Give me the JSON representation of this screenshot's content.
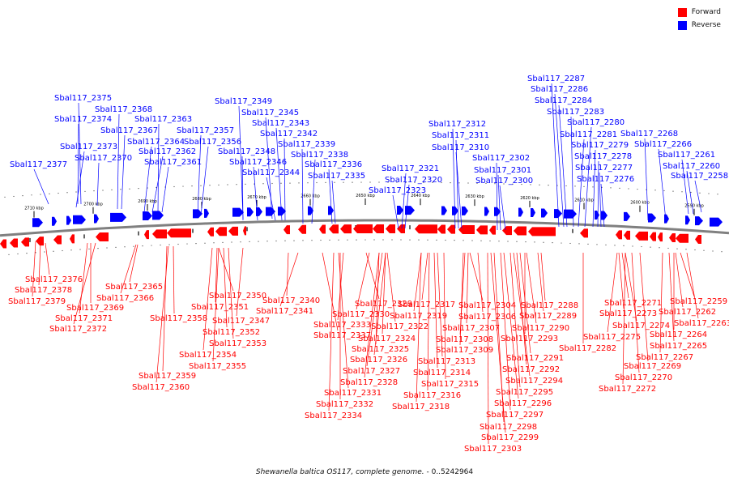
{
  "caption": {
    "organism": "Shewanella baltica OS117, complete genome.",
    "range": " - 0..5242964"
  },
  "legend": [
    {
      "label": "Forward",
      "color": "#ff0000"
    },
    {
      "label": "Reverse",
      "color": "#0000ff"
    }
  ],
  "colors": {
    "forward": "#ff0000",
    "reverse": "#0000ff",
    "backbone": "#808080"
  },
  "scale_labels": [
    "2710 kbp",
    "2700 kbp",
    "2690 kbp",
    "2680 kbp",
    "2670 kbp",
    "2660 kbp",
    "2650 kbp",
    "2640 kbp",
    "2630 kbp",
    "2620 kbp",
    "2610 kbp",
    "2600 kbp",
    "2590 kbp"
  ],
  "reverse_genes": [
    "Sbal117_2377",
    "Sbal117_2375",
    "Sbal117_2374",
    "Sbal117_2373",
    "Sbal117_2370",
    "Sbal117_2368",
    "Sbal117_2367",
    "Sbal117_2364",
    "Sbal117_2363",
    "Sbal117_2362",
    "Sbal117_2361",
    "Sbal117_2357",
    "Sbal117_2356",
    "Sbal117_2349",
    "Sbal117_2348",
    "Sbal117_2346",
    "Sbal117_2345",
    "Sbal117_2344",
    "Sbal117_2343",
    "Sbal117_2342",
    "Sbal117_2339",
    "Sbal117_2338",
    "Sbal117_2336",
    "Sbal117_2335",
    "Sbal117_2323",
    "Sbal117_2321",
    "Sbal117_2320",
    "Sbal117_2312",
    "Sbal117_2311",
    "Sbal117_2310",
    "Sbal117_2302",
    "Sbal117_2301",
    "Sbal117_2300",
    "Sbal117_2287",
    "Sbal117_2286",
    "Sbal117_2284",
    "Sbal117_2283",
    "Sbal117_2281",
    "Sbal117_2280",
    "Sbal117_2279",
    "Sbal117_2278",
    "Sbal117_2277",
    "Sbal117_2276",
    "Sbal117_2268",
    "Sbal117_2266",
    "Sbal117_2261",
    "Sbal117_2260",
    "Sbal117_2258"
  ],
  "forward_genes": [
    "Sbal117_2376",
    "Sbal117_2378",
    "Sbal117_2379",
    "Sbal117_2369",
    "Sbal117_2371",
    "Sbal117_2372",
    "Sbal117_2365",
    "Sbal117_2366",
    "Sbal117_2358",
    "Sbal117_2359",
    "Sbal117_2360",
    "Sbal117_2350",
    "Sbal117_2351",
    "Sbal117_2352",
    "Sbal117_2353",
    "Sbal117_2354",
    "Sbal117_2355",
    "Sbal117_2347",
    "Sbal117_2340",
    "Sbal117_2341",
    "Sbal117_2337",
    "Sbal117_2329",
    "Sbal117_2330",
    "Sbal117_2333",
    "Sbal117_2331",
    "Sbal117_2332",
    "Sbal117_2334",
    "Sbal117_2322",
    "Sbal117_2324",
    "Sbal117_2325",
    "Sbal117_2326",
    "Sbal117_2327",
    "Sbal117_2328",
    "Sbal117_2317",
    "Sbal117_2319",
    "Sbal117_2313",
    "Sbal117_2314",
    "Sbal117_2315",
    "Sbal117_2316",
    "Sbal117_2318",
    "Sbal117_2304",
    "Sbal117_2306",
    "Sbal117_2307",
    "Sbal117_2308",
    "Sbal117_2309",
    "Sbal117_2288",
    "Sbal117_2289",
    "Sbal117_2290",
    "Sbal117_2293",
    "Sbal117_2291",
    "Sbal117_2292",
    "Sbal117_2294",
    "Sbal117_2295",
    "Sbal117_2296",
    "Sbal117_2297",
    "Sbal117_2298",
    "Sbal117_2299",
    "Sbal117_2303",
    "Sbal117_2282",
    "Sbal117_2271",
    "Sbal117_2273",
    "Sbal117_2274",
    "Sbal117_2275",
    "Sbal117_2269",
    "Sbal117_2270",
    "Sbal117_2272",
    "Sbal117_2259",
    "Sbal117_2262",
    "Sbal117_2263",
    "Sbal117_2264",
    "Sbal117_2265",
    "Sbal117_2267"
  ]
}
